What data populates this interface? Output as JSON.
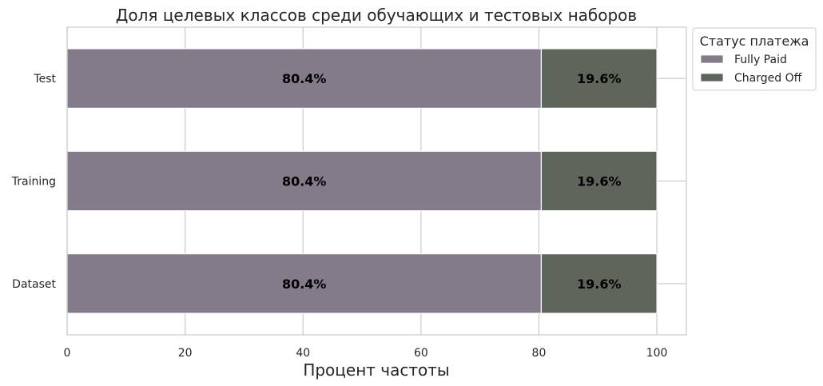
{
  "chart_data": {
    "type": "bar",
    "orientation": "horizontal",
    "stacked": true,
    "title": "Доля целевых классов среди обучающих и тестовых наборов",
    "xlabel": "Процент частоты",
    "ylabel": "",
    "categories": [
      "Dataset",
      "Training",
      "Test"
    ],
    "series": [
      {
        "name": "Fully Paid",
        "values": [
          80.4,
          80.4,
          80.4
        ],
        "labels": [
          "80.4%",
          "80.4%",
          "80.4%"
        ],
        "color": "#837a8a"
      },
      {
        "name": "Charged Off",
        "values": [
          19.6,
          19.6,
          19.6
        ],
        "labels": [
          "19.6%",
          "19.6%",
          "19.6%"
        ],
        "color": "#5e665c"
      }
    ],
    "xlim": [
      0,
      105
    ],
    "xticks": [
      0,
      20,
      40,
      60,
      80,
      100
    ],
    "xtick_labels": [
      "0",
      "20",
      "40",
      "60",
      "80",
      "100"
    ],
    "grid": true,
    "legend": {
      "title": "Статус платежа",
      "placement": "outside-top-right",
      "entries": [
        "Fully Paid",
        "Charged Off"
      ]
    }
  }
}
